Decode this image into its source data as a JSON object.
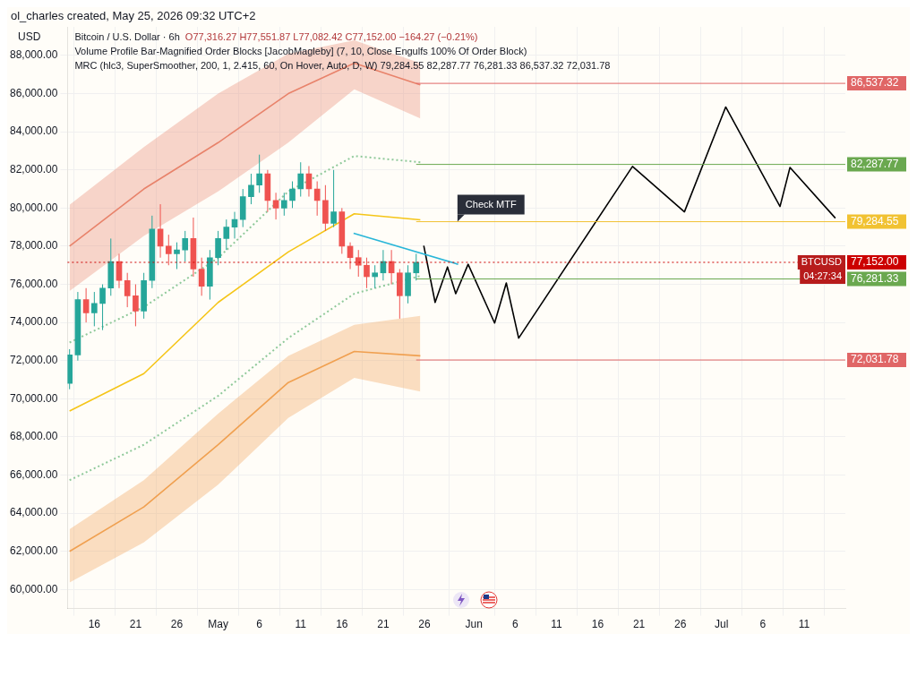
{
  "chart_data": {
    "type": "candlestick",
    "title": "Bitcoin / U.S. Dollar · 6h",
    "subtitle": "O77,316.27 H77,551.87 L77,082.42 C77,152.00 −164.27 (−0.21%)",
    "annotations": [
      "ol_charles created, May 25, 2026 09:32 UTC+2",
      "USD",
      "Volume Profile Bar-Magnified Order Blocks [JacobMagleby] (7, 10, Close Engulfs 100% Of Order Block)",
      "MRC (hlc3, SuperSmoother, 200, 1, 2.415, 60, On Hover, Auto, D, W) 79,284.55 82,287.77 76,281.33 86,537.32 72,031.78",
      {
        "text": "BTCUSD",
        "y": 77152
      },
      "04:27:34",
      {
        "text": "Check MTF",
        "x": "2026-05-30",
        "y": 79284.55
      }
    ],
    "x": [
      "2026-04-13",
      "2026-04-14",
      "2026-04-15",
      "2026-04-16",
      "2026-04-17",
      "2026-04-18",
      "2026-04-19",
      "2026-04-20",
      "2026-04-21",
      "2026-04-22",
      "2026-04-23",
      "2026-04-24",
      "2026-04-25",
      "2026-04-26",
      "2026-04-27",
      "2026-04-28",
      "2026-04-29",
      "2026-04-30",
      "2026-05-01",
      "2026-05-02",
      "2026-05-03",
      "2026-05-04",
      "2026-05-05",
      "2026-05-06",
      "2026-05-07",
      "2026-05-08",
      "2026-05-09",
      "2026-05-10",
      "2026-05-11",
      "2026-05-12",
      "2026-05-13",
      "2026-05-14",
      "2026-05-15",
      "2026-05-16",
      "2026-05-17",
      "2026-05-18",
      "2026-05-19",
      "2026-05-20",
      "2026-05-21",
      "2026-05-22",
      "2026-05-23",
      "2026-05-24",
      "2026-05-25"
    ],
    "ohlc": [
      [
        70800,
        72600,
        70500,
        72300
      ],
      [
        72300,
        75600,
        72000,
        75200
      ],
      [
        75200,
        75800,
        74000,
        74500
      ],
      [
        74500,
        75600,
        73800,
        75000
      ],
      [
        75000,
        76000,
        73600,
        75800
      ],
      [
        75800,
        78400,
        75400,
        77200
      ],
      [
        77200,
        77600,
        75800,
        76200
      ],
      [
        76200,
        76600,
        74800,
        75400
      ],
      [
        75400,
        76000,
        73800,
        74600
      ],
      [
        74600,
        76600,
        74200,
        76200
      ],
      [
        76200,
        79600,
        75800,
        78900
      ],
      [
        78900,
        80200,
        77400,
        78000
      ],
      [
        78000,
        78600,
        77000,
        77600
      ],
      [
        77600,
        78200,
        76800,
        77800
      ],
      [
        77800,
        78800,
        77200,
        78400
      ],
      [
        78400,
        79500,
        76400,
        76800
      ],
      [
        76800,
        77400,
        75400,
        75900
      ],
      [
        75900,
        77800,
        75200,
        77400
      ],
      [
        77400,
        78800,
        77000,
        78400
      ],
      [
        78400,
        79400,
        77800,
        79000
      ],
      [
        79000,
        79800,
        78400,
        79400
      ],
      [
        79400,
        81000,
        79000,
        80600
      ],
      [
        80600,
        81800,
        80200,
        81200
      ],
      [
        81200,
        82800,
        80800,
        81800
      ],
      [
        81800,
        82000,
        79800,
        80400
      ],
      [
        80400,
        80800,
        79400,
        80000
      ],
      [
        80000,
        80800,
        79600,
        80400
      ],
      [
        80400,
        81400,
        80000,
        81000
      ],
      [
        81000,
        82400,
        80600,
        81800
      ],
      [
        81800,
        82200,
        80600,
        81000
      ],
      [
        81000,
        81400,
        79600,
        80400
      ],
      [
        80400,
        81200,
        78800,
        79200
      ],
      [
        79200,
        82000,
        79000,
        79800
      ],
      [
        79800,
        80000,
        77600,
        78000
      ],
      [
        78000,
        78200,
        76800,
        77400
      ],
      [
        77400,
        77800,
        76400,
        77000
      ],
      [
        77000,
        77400,
        75800,
        76400
      ],
      [
        76400,
        77000,
        75800,
        76600
      ],
      [
        76600,
        77800,
        76200,
        77200
      ],
      [
        77200,
        77800,
        76000,
        76600
      ],
      [
        76600,
        76800,
        74200,
        75400
      ],
      [
        75400,
        77000,
        75000,
        76600
      ],
      [
        76600,
        77600,
        76200,
        77152
      ]
    ],
    "series": [
      {
        "type": "line",
        "color": "#e8836b",
        "x": [
          "2026-04-13",
          "2026-04-22",
          "2026-05-01",
          "2026-05-09T12:00",
          "2026-05-17T12:00",
          "2026-05-25T12:00"
        ],
        "values": [
          78000,
          81000,
          83430,
          86000,
          87600,
          86460
        ],
        "lower": [
          75650,
          78540,
          80870,
          83430,
          86230,
          84700
        ],
        "upper": [
          80170,
          83200,
          86000,
          88090,
          88800,
          87600
        ]
      },
      {
        "type": "line",
        "color": "#f0a050",
        "x": [
          "2026-04-13",
          "2026-04-22",
          "2026-05-01",
          "2026-05-09T12:00",
          "2026-05-17T12:00",
          "2026-05-25T12:00"
        ],
        "values": [
          62000,
          64330,
          67590,
          70850,
          72480,
          72250
        ],
        "lower": [
          60370,
          62470,
          65490,
          68990,
          71090,
          70380
        ],
        "upper": [
          63160,
          65730,
          69220,
          72250,
          73880,
          74350
        ]
      },
      {
        "type": "line",
        "color": "#f5c518",
        "x": [
          "2026-04-13",
          "2026-04-22",
          "2026-05-01",
          "2026-05-09T12:00",
          "2026-05-17T12:00",
          "2026-05-25T12:00"
        ],
        "values": [
          69360,
          71320,
          75050,
          77700,
          79700,
          79380
        ]
      },
      {
        "type": "line",
        "color": "#8fc99a",
        "line_style": "dotted",
        "x": [
          "2026-04-13",
          "2026-04-22",
          "2026-05-01",
          "2026-05-09T12:00",
          "2026-05-17T12:00",
          "2026-05-25T12:00"
        ],
        "values": [
          72950,
          74810,
          77380,
          80870,
          82730,
          82400
        ]
      },
      {
        "type": "line",
        "color": "#8fc99a",
        "line_style": "dotted",
        "x": [
          "2026-04-13",
          "2026-04-22",
          "2026-05-01",
          "2026-05-09T12:00",
          "2026-05-17T12:00",
          "2026-05-25T12:00"
        ],
        "values": [
          65730,
          67590,
          70150,
          73180,
          75510,
          76440
        ]
      },
      {
        "type": "line",
        "color": "#29b6d8",
        "x": [
          "2026-05-17T10:00",
          "2026-05-30T02:00"
        ],
        "values": [
          78680,
          77050
        ]
      },
      {
        "type": "line",
        "color": "#000000",
        "x": [
          "2026-05-25T22:00",
          "2026-05-27T07:00",
          "2026-05-28T19:00",
          "2026-05-29T19:00",
          "2026-05-31T07:00",
          "2026-06-03T12:00",
          "2026-06-04T22:00",
          "2026-06-06T10:00",
          "2026-06-20T05:00",
          "2026-06-26T12:00",
          "2026-07-01T12:00",
          "2026-07-08T02:00",
          "2026-07-09T07:00",
          "2026-07-14T19:00"
        ],
        "values": [
          78030,
          75050,
          76910,
          75510,
          77050,
          73970,
          76070,
          73180,
          82180,
          79800,
          85300,
          80080,
          82130,
          79470
        ]
      }
    ],
    "ref_lines": [
      {
        "axis": "y",
        "value": 86537.32,
        "label": "86,537.32",
        "color": "#e06666"
      },
      {
        "axis": "y",
        "value": 82287.77,
        "label": "82,287.77",
        "color": "#6aa84f"
      },
      {
        "axis": "y",
        "value": 79284.55,
        "label": "79,284.55",
        "color": "#f1c232"
      },
      {
        "axis": "y",
        "value": 77152,
        "label": "77,152.00",
        "color": "#cc0000",
        "line_style": "dotted"
      },
      {
        "axis": "y",
        "value": 76281.33,
        "label": "76,281.33",
        "color": "#6aa84f"
      },
      {
        "axis": "y",
        "value": 72031.78,
        "label": "72,031.78",
        "color": "#e06666"
      }
    ],
    "xlim": [
      "2026-04-12T18:00",
      "2026-07-16"
    ],
    "xticks": [
      {
        "value": "2026-04-16",
        "label": "16"
      },
      {
        "value": "2026-04-21",
        "label": "21"
      },
      {
        "value": "2026-04-26",
        "label": "26"
      },
      {
        "value": "2026-05-01",
        "label": "May"
      },
      {
        "value": "2026-05-06",
        "label": "6"
      },
      {
        "value": "2026-05-11",
        "label": "11"
      },
      {
        "value": "2026-05-16",
        "label": "16"
      },
      {
        "value": "2026-05-21",
        "label": "21"
      },
      {
        "value": "2026-05-26",
        "label": "26"
      },
      {
        "value": "2026-06-01",
        "label": "Jun"
      },
      {
        "value": "2026-06-06",
        "label": "6"
      },
      {
        "value": "2026-06-11",
        "label": "11"
      },
      {
        "value": "2026-06-16",
        "label": "16"
      },
      {
        "value": "2026-06-21",
        "label": "21"
      },
      {
        "value": "2026-06-26",
        "label": "26"
      },
      {
        "value": "2026-07-01",
        "label": "Jul"
      },
      {
        "value": "2026-07-06",
        "label": "6"
      },
      {
        "value": "2026-07-11",
        "label": "11"
      }
    ],
    "ylim": [
      59000,
      89500
    ],
    "yticks": [
      {
        "value": 60000,
        "label": "60,000.00"
      },
      {
        "value": 62000,
        "label": "62,000.00"
      },
      {
        "value": 64000,
        "label": "64,000.00"
      },
      {
        "value": 66000,
        "label": "66,000.00"
      },
      {
        "value": 68000,
        "label": "68,000.00"
      },
      {
        "value": 70000,
        "label": "70,000.00"
      },
      {
        "value": 72000,
        "label": "72,000.00"
      },
      {
        "value": 74000,
        "label": "74,000.00"
      },
      {
        "value": 76000,
        "label": "76,000.00"
      },
      {
        "value": 78000,
        "label": "78,000.00"
      },
      {
        "value": 80000,
        "label": "80,000.00"
      },
      {
        "value": 82000,
        "label": "82,000.00"
      },
      {
        "value": 84000,
        "label": "84,000.00"
      },
      {
        "value": 86000,
        "label": "86,000.00"
      },
      {
        "value": 88000,
        "label": "88,000.00"
      }
    ],
    "grid": true,
    "legend": false
  }
}
